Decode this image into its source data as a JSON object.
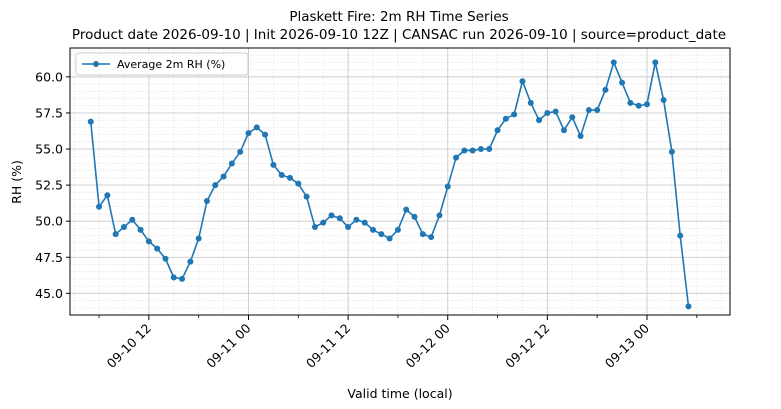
{
  "chart_data": {
    "type": "line",
    "title": "Plaskett Fire: 2m RH Time Series",
    "subtitle": "Product date 2026-09-10 | Init 2026-09-10 12Z | CANSAC run 2026-09-10 | source=product_date",
    "xlabel": "Valid time (local)",
    "ylabel": "RH (%)",
    "x_ticks": [
      "09-10 12",
      "09-11 00",
      "09-11 12",
      "09-12 00",
      "09-12 12",
      "09-13 00"
    ],
    "y_ticks": [
      "45.0",
      "47.5",
      "50.0",
      "52.5",
      "55.0",
      "57.5",
      "60.0"
    ],
    "ylim": [
      43.5,
      62.0
    ],
    "xlim": [
      "2026-09-10 02:30",
      "2026-09-13 10:00"
    ],
    "grid": true,
    "legend_position": "upper-left",
    "time_step_hours": 1,
    "series": [
      {
        "name": "Average 2m RH (%)",
        "color": "#1f77b4",
        "x_start": "2026-09-10 05:00",
        "values": [
          56.9,
          51.0,
          51.8,
          49.1,
          49.6,
          50.1,
          49.4,
          48.6,
          48.1,
          47.4,
          46.1,
          46.0,
          47.2,
          48.8,
          51.4,
          52.5,
          53.1,
          54.0,
          54.8,
          56.1,
          56.5,
          56.0,
          53.9,
          53.2,
          53.0,
          52.6,
          51.7,
          49.6,
          49.9,
          50.4,
          50.2,
          49.6,
          50.1,
          49.9,
          49.4,
          49.1,
          48.8,
          49.4,
          50.8,
          50.3,
          49.1,
          48.9,
          50.4,
          52.4,
          54.4,
          54.9,
          54.9,
          55.0,
          55.0,
          56.3,
          57.1,
          57.4,
          59.7,
          58.2,
          57.0,
          57.5,
          57.6,
          56.3,
          57.2,
          55.9,
          57.7,
          57.7,
          59.1,
          61.0,
          59.6,
          58.2,
          58.0,
          58.1,
          61.0,
          58.4,
          54.8,
          49.0,
          44.1
        ]
      }
    ]
  }
}
